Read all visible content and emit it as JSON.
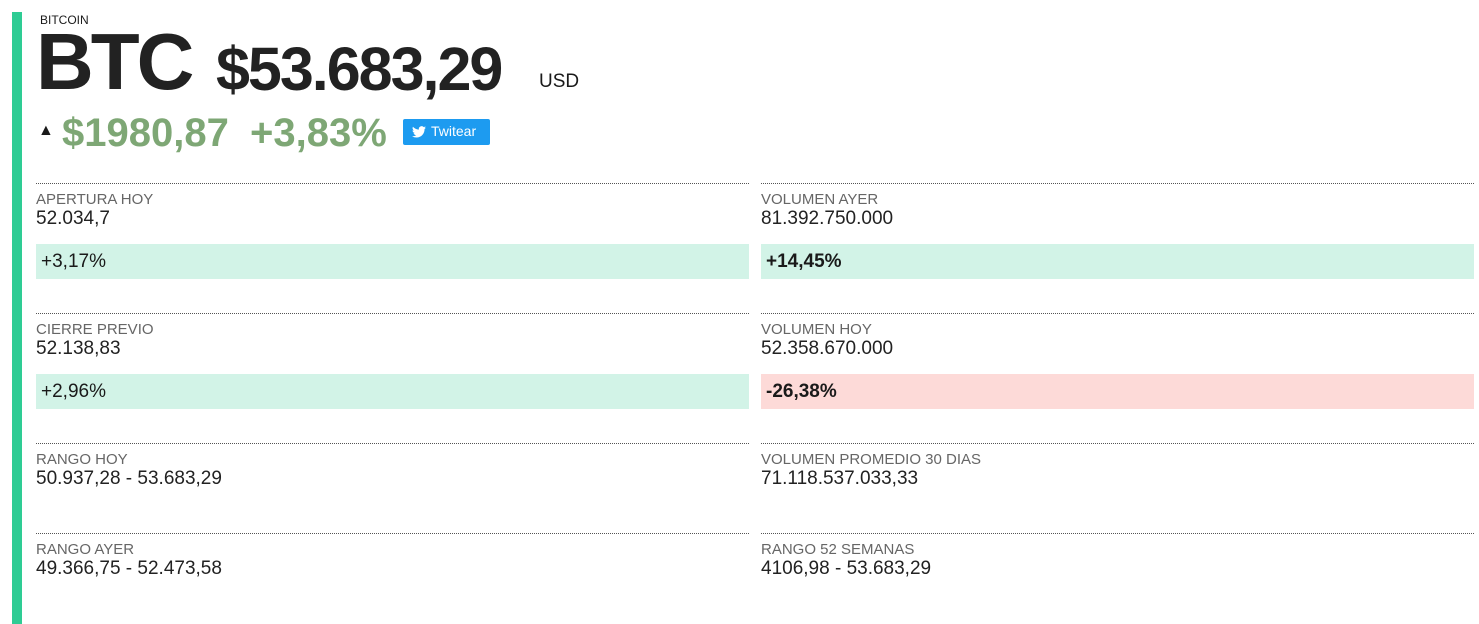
{
  "header": {
    "name": "BITCOIN",
    "ticker": "BTC",
    "price": "$53.683,29",
    "currency": "USD",
    "change": "$1980,87",
    "change_percent": "+3,83%",
    "share_button": "Twitear"
  },
  "stats": {
    "left": [
      {
        "label": "APERTURA HOY",
        "value": "52.034,7",
        "change": "+3,17%",
        "color": "#d2f3e7"
      },
      {
        "label": "CIERRE PREVIO",
        "value": "52.138,83",
        "change": "+2,96%",
        "color": "#d2f3e7"
      },
      {
        "label": "RANGO HOY",
        "value": "50.937,28 - 53.683,29"
      },
      {
        "label": "RANGO AYER",
        "value": "49.366,75 - 52.473,58"
      }
    ],
    "right": [
      {
        "label": "VOLUMEN AYER",
        "value": "81.392.750.000",
        "change": "+14,45%",
        "color": "#d2f3e7"
      },
      {
        "label": "VOLUMEN HOY",
        "value": "52.358.670.000",
        "change": "-26,38%",
        "color": "#fddad8"
      },
      {
        "label": "VOLUMEN PROMEDIO 30 DIAS",
        "value": "71.118.537.033,33"
      },
      {
        "label": "RANGO 52 SEMANAS",
        "value": "4106,98 - 53.683,29"
      }
    ]
  }
}
